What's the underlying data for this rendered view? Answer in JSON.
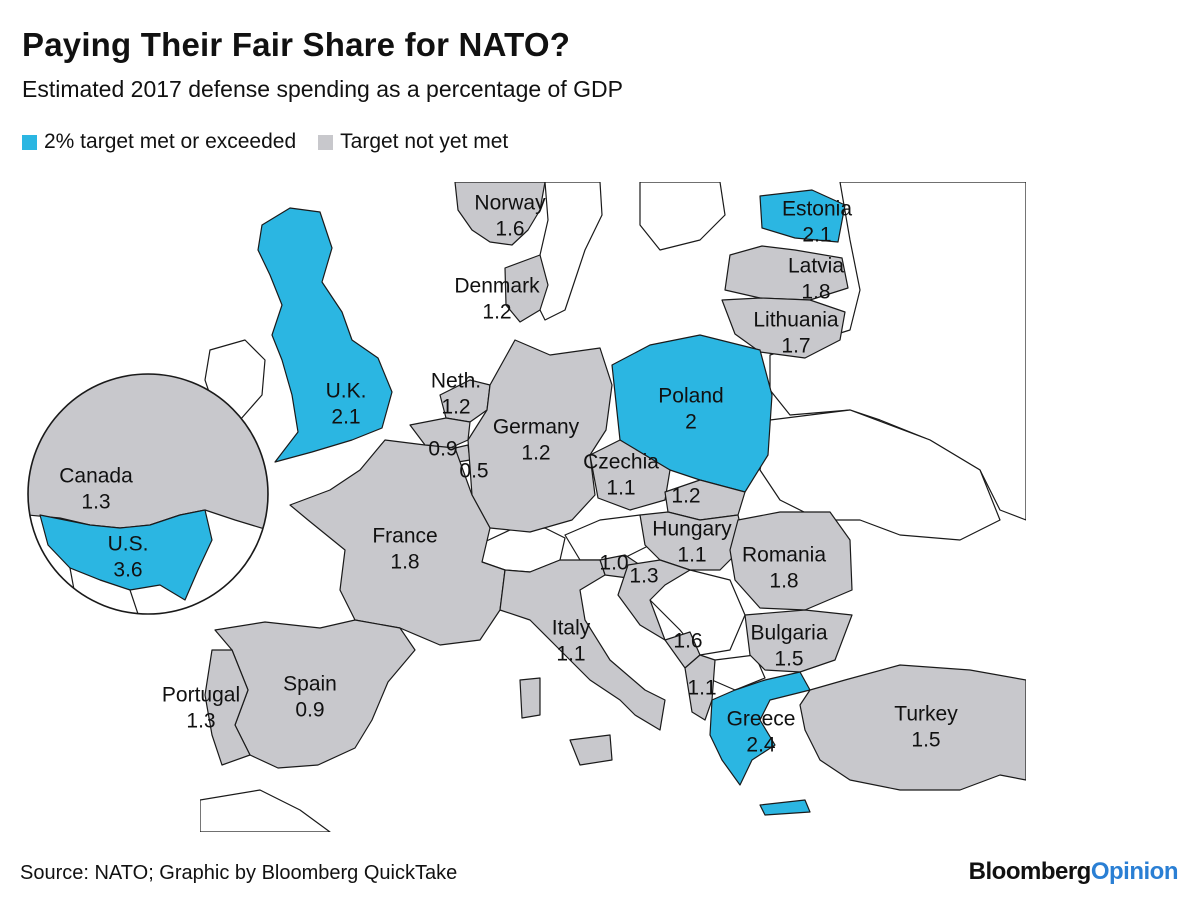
{
  "title": "Paying Their Fair Share for NATO?",
  "subtitle": "Estimated 2017 defense spending as a percentage of GDP",
  "legend": {
    "met": {
      "label": "2% target met or exceeded",
      "color": "#2bb6e2"
    },
    "not_met": {
      "label": "Target not yet met",
      "color": "#c8c8cc"
    }
  },
  "colors": {
    "met": "#2bb6e2",
    "not_met": "#c8c8cc",
    "non_nato": "#ffffff",
    "border": "#1a1a1a"
  },
  "countries": [
    {
      "key": "norway",
      "name": "Norway",
      "value": "1.6",
      "met": false
    },
    {
      "key": "denmark",
      "name": "Denmark",
      "value": "1.2",
      "met": false
    },
    {
      "key": "estonia",
      "name": "Estonia",
      "value": "2.1",
      "met": true
    },
    {
      "key": "latvia",
      "name": "Latvia",
      "value": "1.8",
      "met": false
    },
    {
      "key": "lithuania",
      "name": "Lithuania",
      "value": "1.7",
      "met": false
    },
    {
      "key": "uk",
      "name": "U.K.",
      "value": "2.1",
      "met": true
    },
    {
      "key": "netherlands",
      "name": "Neth.",
      "value": "1.2",
      "met": false
    },
    {
      "key": "belgium",
      "name": "",
      "value": "0.9",
      "met": false
    },
    {
      "key": "luxembourg",
      "name": "",
      "value": "0.5",
      "met": false
    },
    {
      "key": "germany",
      "name": "Germany",
      "value": "1.2",
      "met": false
    },
    {
      "key": "poland",
      "name": "Poland",
      "value": "2",
      "met": true
    },
    {
      "key": "czechia",
      "name": "Czechia",
      "value": "1.1",
      "met": false
    },
    {
      "key": "slovakia",
      "name": "",
      "value": "1.2",
      "met": false
    },
    {
      "key": "hungary",
      "name": "Hungary",
      "value": "1.1",
      "met": false
    },
    {
      "key": "romania",
      "name": "Romania",
      "value": "1.8",
      "met": false
    },
    {
      "key": "slovenia",
      "name": "",
      "value": "1.0",
      "met": false
    },
    {
      "key": "croatia",
      "name": "",
      "value": "1.3",
      "met": false
    },
    {
      "key": "france",
      "name": "France",
      "value": "1.8",
      "met": false
    },
    {
      "key": "italy",
      "name": "Italy",
      "value": "1.1",
      "met": false
    },
    {
      "key": "montenegro",
      "name": "",
      "value": "1.6",
      "met": false
    },
    {
      "key": "albania",
      "name": "",
      "value": "1.1",
      "met": false
    },
    {
      "key": "bulgaria",
      "name": "Bulgaria",
      "value": "1.5",
      "met": false
    },
    {
      "key": "greece",
      "name": "Greece",
      "value": "2.4",
      "met": true
    },
    {
      "key": "turkey",
      "name": "Turkey",
      "value": "1.5",
      "met": false
    },
    {
      "key": "spain",
      "name": "Spain",
      "value": "0.9",
      "met": false
    },
    {
      "key": "portugal",
      "name": "Portugal",
      "value": "1.3",
      "met": false
    },
    {
      "key": "canada",
      "name": "Canada",
      "value": "1.3",
      "met": false
    },
    {
      "key": "us",
      "name": "U.S.",
      "value": "3.6",
      "met": true
    }
  ],
  "source": "Source: NATO; Graphic by Bloomberg QuickTake",
  "brand": {
    "part1": "Bloomberg",
    "part2": "Opinion"
  }
}
